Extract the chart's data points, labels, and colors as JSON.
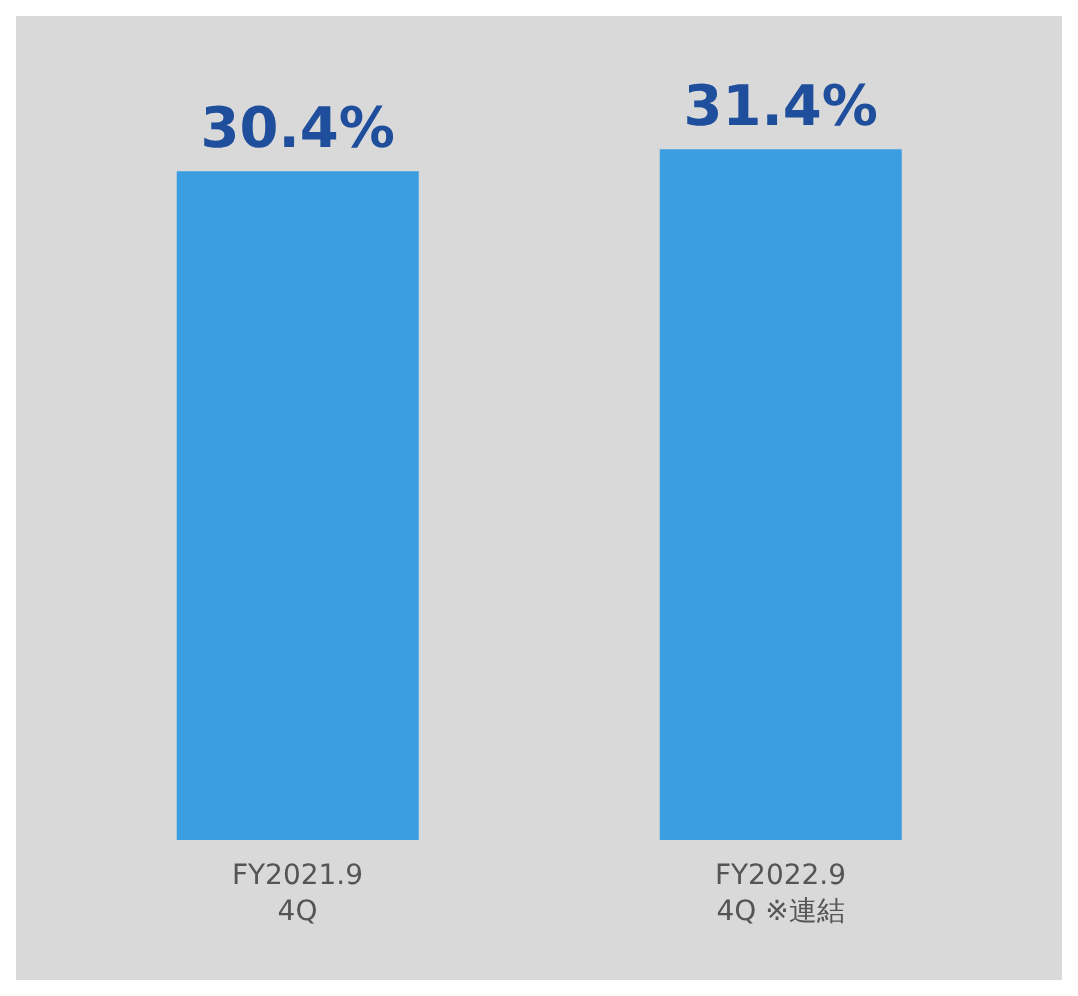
{
  "chart_data": {
    "type": "bar",
    "categories": [
      "FY2021.9\n4Q",
      "FY2022.9\n4Q ※連結"
    ],
    "values": [
      30.4,
      31.4
    ],
    "value_labels": [
      "30.4%",
      "31.4%"
    ],
    "color": "#3a9ee0"
  }
}
